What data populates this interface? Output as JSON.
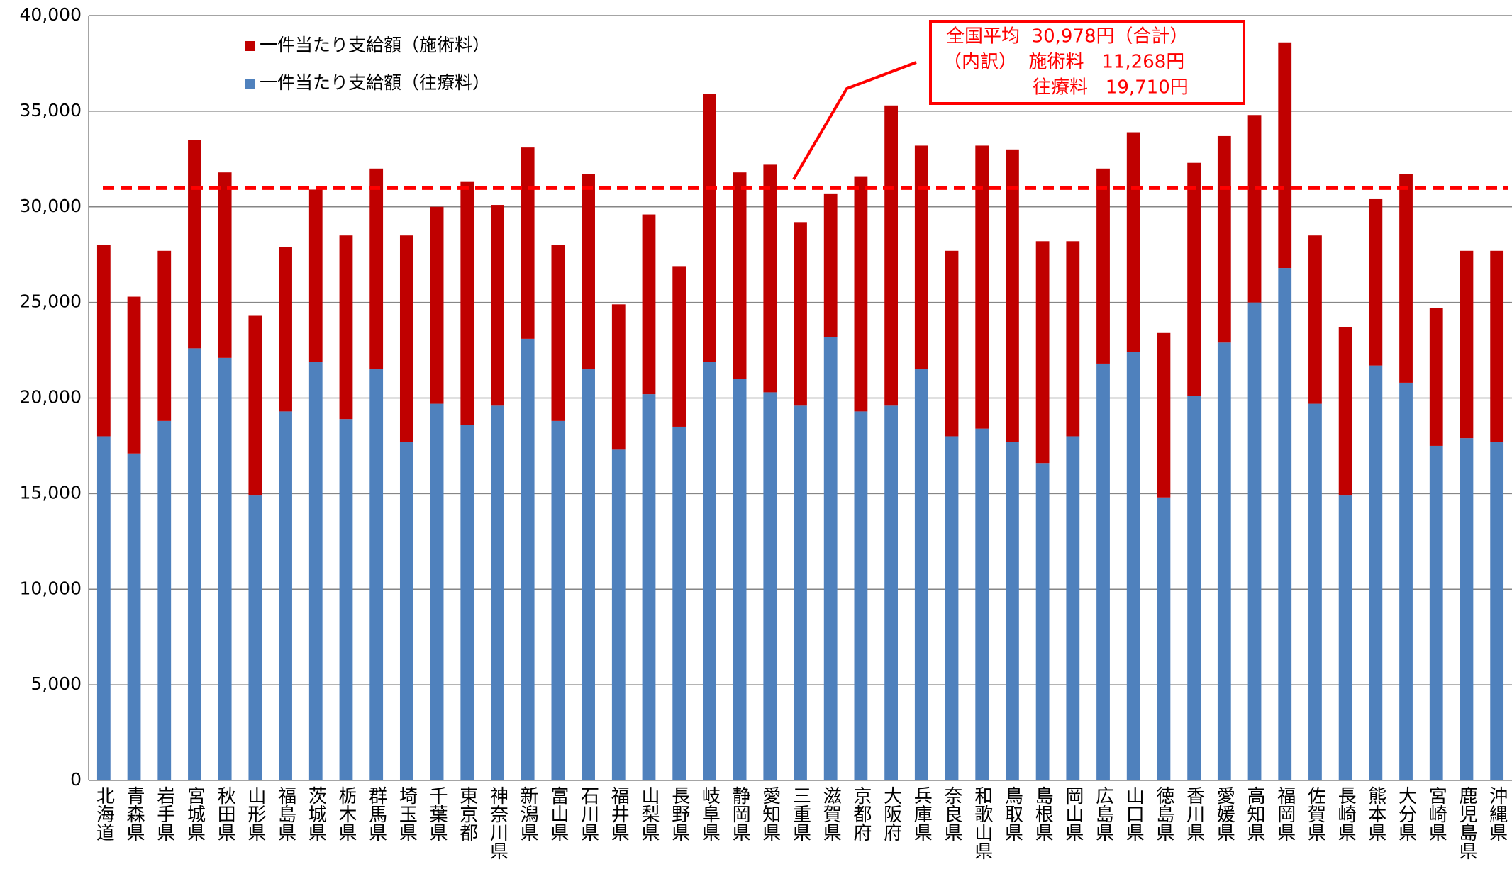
{
  "chart_data": {
    "type": "bar",
    "stacked": true,
    "categories": [
      "北海道",
      "青森県",
      "岩手県",
      "宮城県",
      "秋田県",
      "山形県",
      "福島県",
      "茨城県",
      "栃木県",
      "群馬県",
      "埼玉県",
      "千葉県",
      "東京都",
      "神奈川県",
      "新潟県",
      "富山県",
      "石川県",
      "福井県",
      "山梨県",
      "長野県",
      "岐阜県",
      "静岡県",
      "愛知県",
      "三重県",
      "滋賀県",
      "京都府",
      "大阪府",
      "兵庫県",
      "奈良県",
      "和歌山県",
      "鳥取県",
      "島根県",
      "岡山県",
      "広島県",
      "山口県",
      "徳島県",
      "香川県",
      "愛媛県",
      "高知県",
      "福岡県",
      "佐賀県",
      "長崎県",
      "熊本県",
      "大分県",
      "宮崎県",
      "鹿児島県",
      "沖縄県"
    ],
    "series": [
      {
        "name": "一件当たり支給額（往療料）",
        "color": "#4f81bd",
        "values": [
          18000,
          17100,
          18800,
          22600,
          22100,
          14900,
          19300,
          21900,
          18900,
          21500,
          17700,
          19700,
          18600,
          19600,
          23100,
          18800,
          21500,
          17300,
          20200,
          18500,
          21900,
          21000,
          20300,
          19600,
          23200,
          19300,
          19600,
          21500,
          18000,
          18400,
          17700,
          16600,
          18000,
          21800,
          22400,
          14800,
          20100,
          22900,
          25000,
          26800,
          19700,
          14900,
          21700,
          20800,
          17500,
          17900,
          17700
        ]
      },
      {
        "name": "一件当たり支給額（施術料）",
        "color": "#c00000",
        "values": [
          10000,
          8200,
          8900,
          10900,
          9700,
          9400,
          8600,
          9000,
          9600,
          10500,
          10800,
          10300,
          12700,
          10500,
          10000,
          9200,
          10200,
          7600,
          9400,
          8400,
          14000,
          10800,
          11900,
          9600,
          7500,
          12300,
          15700,
          11700,
          9700,
          14800,
          15300,
          11600,
          10200,
          10200,
          11500,
          8600,
          12200,
          10800,
          9800,
          11800,
          8800,
          8800,
          8700,
          10900,
          7200,
          9800,
          10000
        ]
      }
    ],
    "ylim": [
      0,
      40000
    ],
    "yticks": [
      {
        "value": 0,
        "label": "0"
      },
      {
        "value": 5000,
        "label": "5,000"
      },
      {
        "value": 10000,
        "label": "10,000"
      },
      {
        "value": 15000,
        "label": "15,000"
      },
      {
        "value": 20000,
        "label": "20,000"
      },
      {
        "value": 25000,
        "label": "25,000"
      },
      {
        "value": 30000,
        "label": "30,000"
      },
      {
        "value": 35000,
        "label": "35,000"
      },
      {
        "value": 40000,
        "label": "40,000"
      }
    ],
    "grid": true,
    "reference_line": {
      "value": 30978,
      "color": "#ff0000"
    },
    "annotation": [
      "全国平均  30,978円（合計）",
      "（内訳）  施術料   11,268円",
      "往療料   19,710円"
    ]
  }
}
